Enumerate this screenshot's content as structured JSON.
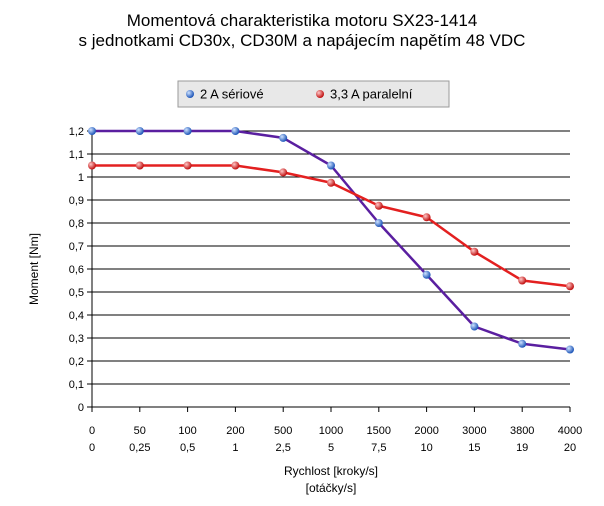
{
  "chart_data": {
    "type": "line",
    "title": "Momentová charakteristika motoru SX23-1414",
    "subtitle": "s jednotkami CD30x, CD30M a napájecím napětím 48 VDC",
    "xlabel": "Rychlost [kroky/s]",
    "xlabel2": "[otáčky/s]",
    "ylabel": "Moment [Nm]",
    "categories": [
      "0",
      "50",
      "100",
      "200",
      "500",
      "1000",
      "1500",
      "2000",
      "3000",
      "3800",
      "4000"
    ],
    "categories2": [
      "0",
      "0,25",
      "0,5",
      "1",
      "2,5",
      "5",
      "7,5",
      "10",
      "15",
      "19",
      "20"
    ],
    "ylim": [
      0,
      1.2
    ],
    "yticks": [
      "0",
      "0,1",
      "0,2",
      "0,3",
      "0,4",
      "0,5",
      "0,6",
      "0,7",
      "0,8",
      "0,9",
      "1",
      "1,1",
      "1,2"
    ],
    "grid": true,
    "legend_position": "top",
    "series": [
      {
        "name": "2 A sériové",
        "color": "#5a1fa0",
        "marker_color": "#3a78d8",
        "values": [
          1.2,
          1.2,
          1.2,
          1.2,
          1.17,
          1.05,
          0.8,
          0.575,
          0.35,
          0.275,
          0.25
        ]
      },
      {
        "name": "3,3 A paralelní",
        "color": "#e32020",
        "marker_color": "#e32020",
        "values": [
          1.05,
          1.05,
          1.05,
          1.05,
          1.02,
          0.975,
          0.875,
          0.825,
          0.675,
          0.55,
          0.525
        ]
      }
    ]
  }
}
